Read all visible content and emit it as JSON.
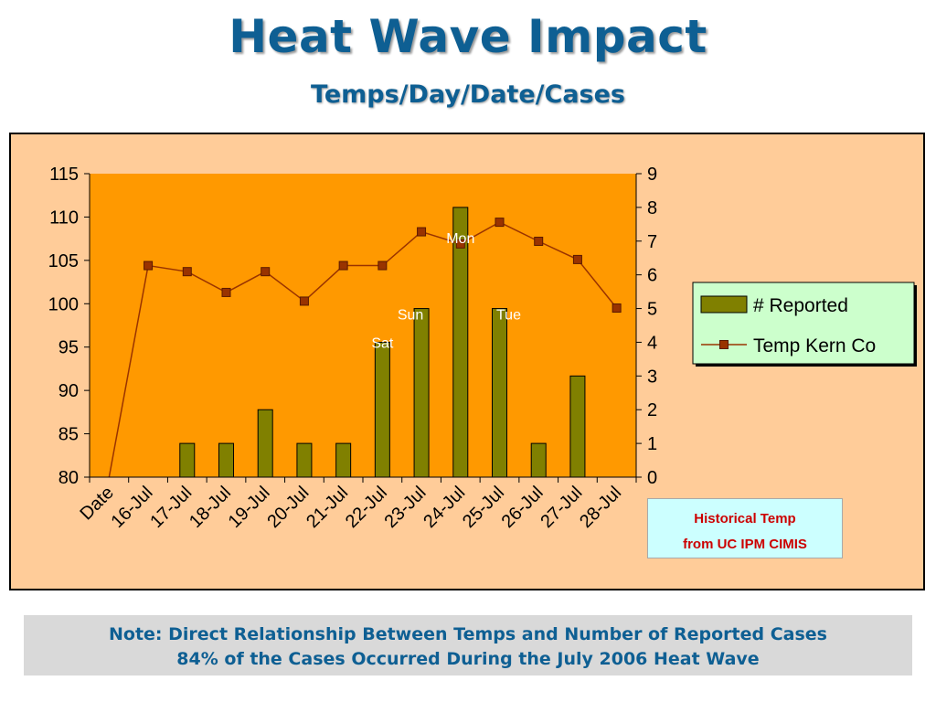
{
  "slide": {
    "title": "Heat Wave Impact",
    "subtitle": "Temps/Day/Date/Cases"
  },
  "callout": {
    "line1": "Historical Temp",
    "line2": "from UC IPM CIMIS"
  },
  "note": {
    "line1": "Note: Direct Relationship Between Temps and Number of Reported Cases",
    "line2": "84% of the Cases Occurred During the July 2006 Heat Wave"
  },
  "colors": {
    "plot_bg": "#ff9900",
    "frame_bg": "#ffcc99",
    "bar": "#808000",
    "line": "#993300",
    "marker": "#993300",
    "title": "#0e5f93",
    "legend_bg": "#ccffcc"
  },
  "chart_data": {
    "type": "bar",
    "categories": [
      "Date",
      "16-Jul",
      "17-Jul",
      "18-Jul",
      "19-Jul",
      "20-Jul",
      "21-Jul",
      "22-Jul",
      "23-Jul",
      "24-Jul",
      "25-Jul",
      "26-Jul",
      "27-Jul",
      "28-Jul"
    ],
    "series": [
      {
        "name": "# Reported",
        "type": "bar",
        "axis": "right",
        "values": [
          null,
          null,
          1,
          1,
          2,
          1,
          1,
          4,
          5,
          8,
          5,
          1,
          3,
          null
        ]
      },
      {
        "name": "Temp Kern Co",
        "type": "line",
        "axis": "left",
        "values": [
          80,
          104.4,
          103.7,
          101.3,
          103.7,
          100.3,
          104.4,
          104.4,
          108.3,
          106.9,
          109.4,
          107.2,
          105.1,
          99.5
        ]
      }
    ],
    "point_labels": [
      {
        "text": "Sat",
        "category": "22-Jul"
      },
      {
        "text": "Sun",
        "category": "23-Jul"
      },
      {
        "text": "Mon",
        "category": "24-Jul"
      },
      {
        "text": "Tue",
        "category": "25-Jul"
      }
    ],
    "y_left": {
      "min": 80,
      "max": 115,
      "ticks": [
        80,
        85,
        90,
        95,
        100,
        105,
        110,
        115
      ]
    },
    "y_right": {
      "min": 0,
      "max": 9,
      "ticks": [
        0,
        1,
        2,
        3,
        4,
        5,
        6,
        7,
        8,
        9
      ]
    },
    "grid": false,
    "legend": {
      "position": "right"
    }
  }
}
